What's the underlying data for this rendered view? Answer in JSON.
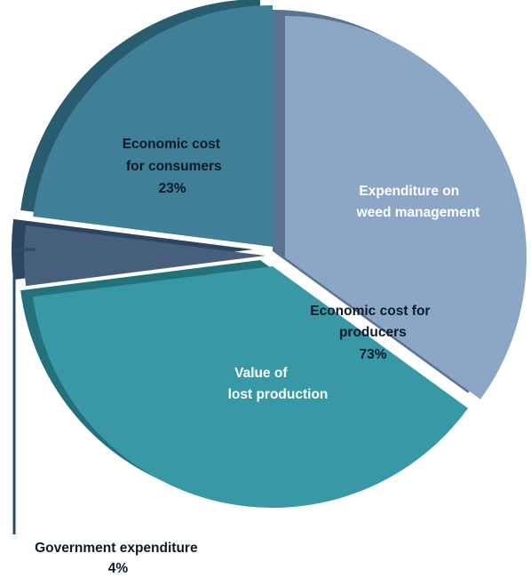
{
  "chart_data": {
    "type": "pie",
    "slices": [
      {
        "key": "weed_management",
        "lines": [
          "Expenditure on",
          "weed management"
        ],
        "percent": 35,
        "color": "#8ba7c5",
        "side_color": "#5c7390"
      },
      {
        "key": "lost_production",
        "lines": [
          "Value of",
          "lost production"
        ],
        "percent": 38,
        "color": "#3898a6",
        "side_color": "#24707b"
      },
      {
        "key": "government",
        "lines": [
          "Government expenditure",
          "4%"
        ],
        "percent": 4,
        "color": "#455f7c",
        "side_color": "#2e4560"
      },
      {
        "key": "consumers",
        "lines": [
          "Economic cost",
          "for consumers",
          "23%"
        ],
        "percent": 23,
        "color": "#3f7f98",
        "side_color": "#2a5c70"
      }
    ],
    "group_labels": [
      {
        "key": "producers",
        "lines": [
          "Economic cost for",
          "producers",
          "73%"
        ],
        "members": [
          "weed_management",
          "lost_production"
        ]
      }
    ],
    "leader_line_color": "#2a4a66"
  }
}
